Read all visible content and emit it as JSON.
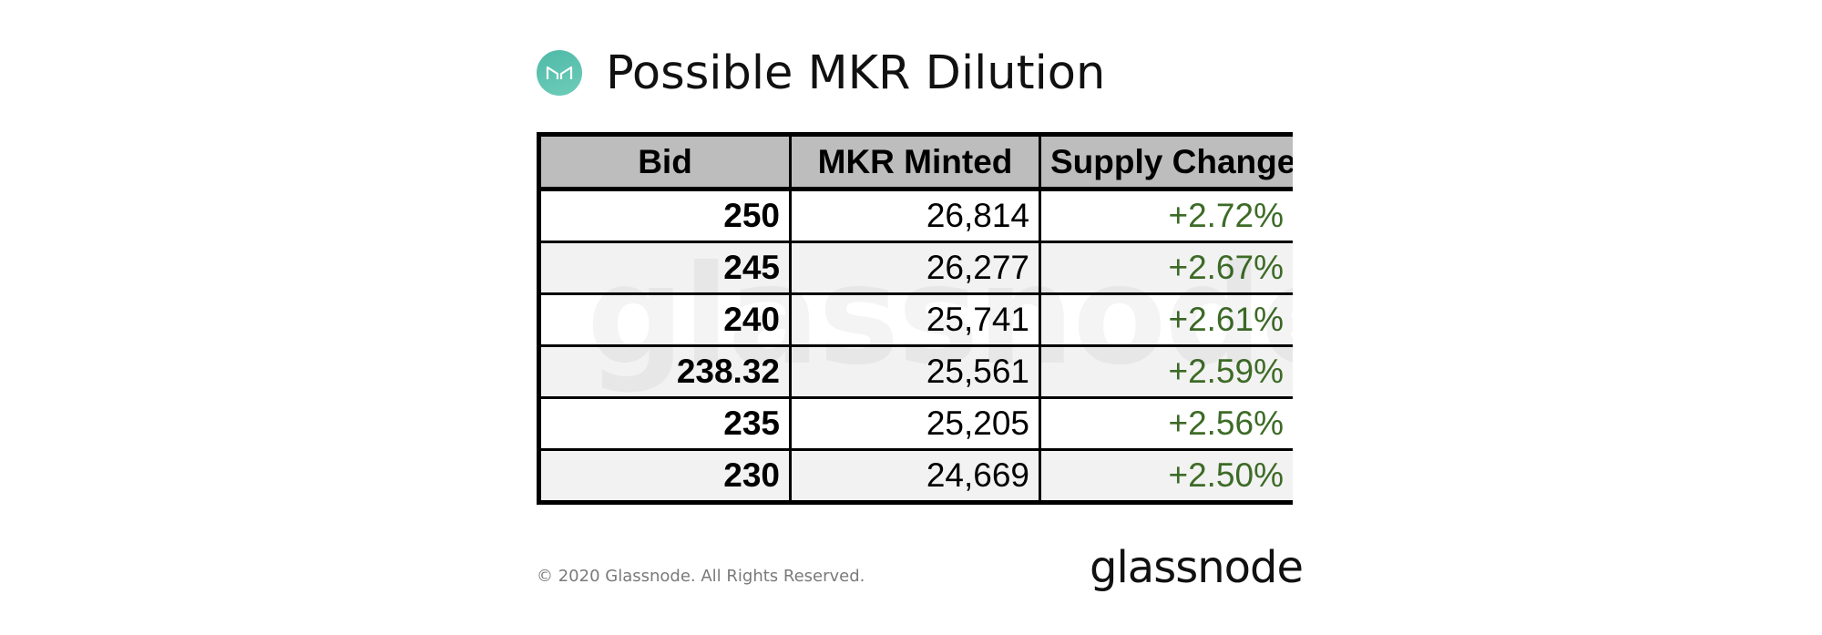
{
  "header": {
    "title": "Possible MKR Dilution",
    "logo_icon": "maker-mkr-logo-icon",
    "logo_color": "#5fc3b0"
  },
  "chart_data": {
    "type": "table",
    "title": "Possible MKR Dilution",
    "columns": [
      "Bid",
      "MKR Minted",
      "Supply Change"
    ],
    "rows": [
      {
        "bid": "250",
        "minted": "26,814",
        "change": "+2.72%"
      },
      {
        "bid": "245",
        "minted": "26,277",
        "change": "+2.67%"
      },
      {
        "bid": "240",
        "minted": "25,741",
        "change": "+2.61%"
      },
      {
        "bid": "238.32",
        "minted": "25,561",
        "change": "+2.59%"
      },
      {
        "bid": "235",
        "minted": "25,205",
        "change": "+2.56%"
      },
      {
        "bid": "230",
        "minted": "24,669",
        "change": "+2.50%"
      }
    ],
    "header_color": "#bdbdbd",
    "change_color": "#3d6b27",
    "watermark": "glassnode"
  },
  "footer": {
    "copyright": "© 2020 Glassnode. All Rights Reserved.",
    "brand": "glassnode"
  }
}
